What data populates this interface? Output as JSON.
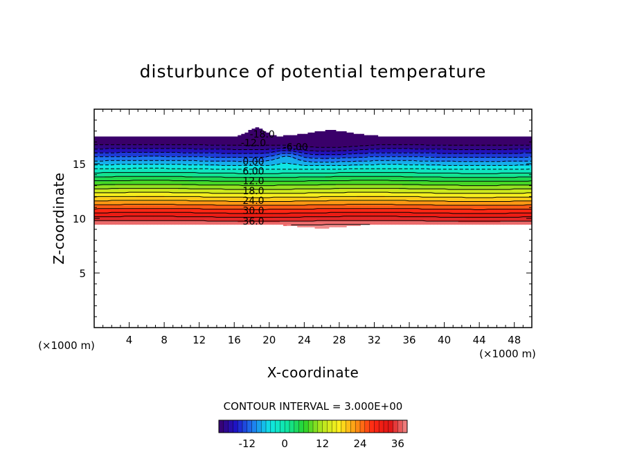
{
  "chart_data": {
    "type": "heatmap",
    "title": "disturbunce of potential temperature",
    "xlabel": "X-coordinate",
    "ylabel": "Z-coordinate",
    "x_unit": "(×1000 m)",
    "y_unit": "(×1000 m)",
    "xlim": [
      0,
      50
    ],
    "ylim": [
      0,
      20
    ],
    "x_ticks": [
      4,
      8,
      12,
      16,
      20,
      24,
      28,
      32,
      36,
      40,
      44,
      48
    ],
    "y_ticks": [
      5,
      10,
      15
    ],
    "contour_interval_label": "CONTOUR INTERVAL = 3.000E+00",
    "contour_interval": 3.0,
    "levels": [
      -21,
      -18,
      -15,
      -12,
      -9,
      -6,
      -3,
      0,
      3,
      6,
      9,
      12,
      15,
      18,
      21,
      24,
      27,
      30,
      33,
      36,
      39
    ],
    "contour_labels": [
      {
        "text": "-18.0",
        "x": 19.2,
        "z": 17.8
      },
      {
        "text": "-12.0",
        "x": 18.2,
        "z": 17.0
      },
      {
        "text": "-6.00",
        "x": 23.0,
        "z": 16.6
      },
      {
        "text": "0.00",
        "x": 18.2,
        "z": 15.3
      },
      {
        "text": "6.00",
        "x": 18.2,
        "z": 14.4
      },
      {
        "text": "12.0",
        "x": 18.2,
        "z": 13.5
      },
      {
        "text": "18.0",
        "x": 18.2,
        "z": 12.6
      },
      {
        "text": "24.0",
        "x": 18.2,
        "z": 11.7
      },
      {
        "text": "30.0",
        "x": 18.2,
        "z": 10.8
      },
      {
        "text": "36.0",
        "x": 18.2,
        "z": 9.8
      }
    ],
    "colorbar": {
      "min": -21,
      "max": 39,
      "tick_labels": [
        {
          "text": "-12",
          "value": -12
        },
        {
          "text": "0",
          "value": 0
        },
        {
          "text": "12",
          "value": 12
        },
        {
          "text": "24",
          "value": 24
        },
        {
          "text": "36",
          "value": 36
        }
      ]
    },
    "colors": {
      "stops": [
        "#3a006a",
        "#1e14c8",
        "#1e7cf0",
        "#10e6e6",
        "#10e6a0",
        "#28d22a",
        "#b4e61e",
        "#fff01e",
        "#ff9614",
        "#ff2814",
        "#e01414",
        "#f08c8c"
      ]
    }
  }
}
